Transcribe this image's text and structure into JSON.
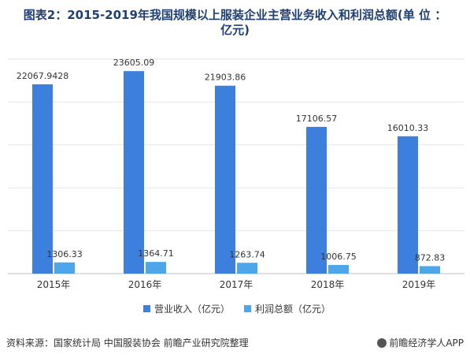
{
  "title": {
    "line1": "图表2：2015-2019年我国规模以上服装企业主营业务收入和利润总额(单 位 ：",
    "line2": "亿元)"
  },
  "chart_data": {
    "type": "bar",
    "categories": [
      "2015年",
      "2016年",
      "2017年",
      "2018年",
      "2019年"
    ],
    "series": [
      {
        "name": "营业收入（亿元）",
        "values": [
          22067.9428,
          23605.09,
          21903.86,
          17106.57,
          16010.33
        ],
        "labels": [
          "22067.9428",
          "23605.09",
          "21903.86",
          "17106.57",
          "16010.33"
        ],
        "color": "#3c7fdc"
      },
      {
        "name": "利润总额（亿元）",
        "values": [
          1306.33,
          1364.71,
          1263.74,
          1006.75,
          872.83
        ],
        "labels": [
          "1306.33",
          "1364.71",
          "1263.74",
          "1006.75",
          "872.83"
        ],
        "color": "#4ea6ea"
      }
    ],
    "ylim": [
      0,
      25000
    ],
    "grid": true,
    "legend_position": "bottom"
  },
  "footer": {
    "source": "资料来源：国家统计局 中国服装协会 前瞻产业研究院整理",
    "brand": "前瞻经济学人APP"
  }
}
